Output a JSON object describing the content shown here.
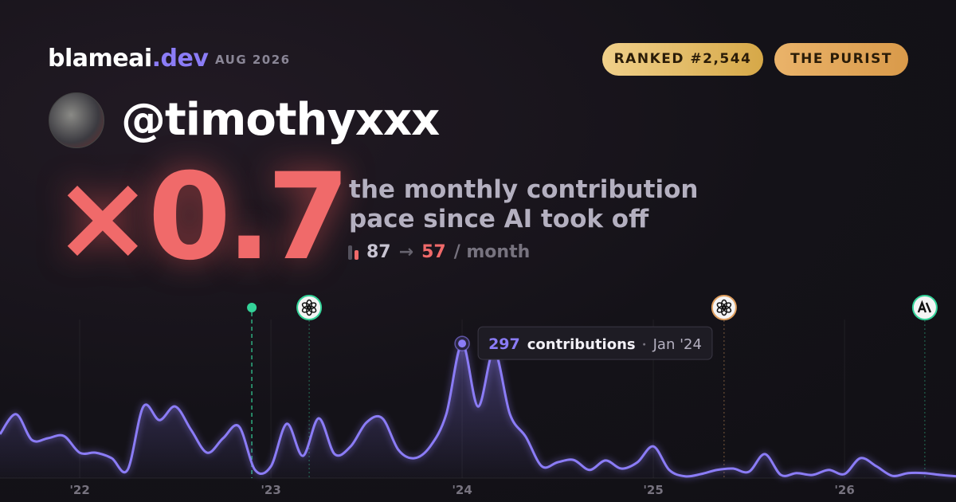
{
  "header": {
    "brand": "blameai",
    "brand_suffix": ".dev",
    "period": "AUG 2026",
    "badges": [
      "RANKED #2,544",
      "THE PURIST"
    ]
  },
  "profile": {
    "username": "@timothyxxx"
  },
  "headline": {
    "multiplier": {
      "value": 0.7,
      "label": "×0.7"
    },
    "description": [
      "the monthly contribution",
      "pace since AI took off"
    ],
    "before": 87,
    "arrow": "→",
    "after": 57,
    "unit": "/ month"
  },
  "chart_data": {
    "type": "line",
    "x": [
      2021.583,
      2021.667,
      2021.75,
      2021.833,
      2021.917,
      2022,
      2022.083,
      2022.167,
      2022.25,
      2022.333,
      2022.417,
      2022.5,
      2022.583,
      2022.667,
      2022.75,
      2022.833,
      2022.917,
      2023,
      2023.083,
      2023.167,
      2023.25,
      2023.333,
      2023.417,
      2023.5,
      2023.583,
      2023.667,
      2023.75,
      2023.833,
      2023.917,
      2024,
      2024.083,
      2024.167,
      2024.25,
      2024.333,
      2024.417,
      2024.5,
      2024.583,
      2024.667,
      2024.75,
      2024.833,
      2024.917,
      2025,
      2025.083,
      2025.167,
      2025.25,
      2025.333,
      2025.417,
      2025.5,
      2025.583,
      2025.667,
      2025.75,
      2025.833,
      2025.917,
      2026,
      2026.083,
      2026.167,
      2026.25,
      2026.333,
      2026.417,
      2026.5,
      2026.583
    ],
    "series": [
      {
        "color": "#8b7cf6",
        "values": [
          97,
          141,
          84,
          88,
          93,
          56,
          56,
          44,
          18,
          158,
          128,
          158,
          106,
          56,
          88,
          114,
          18,
          26,
          120,
          49,
          132,
          53,
          70,
          123,
          132,
          62,
          44,
          70,
          141,
          297,
          158,
          281,
          141,
          91,
          26,
          35,
          40,
          18,
          39,
          21,
          35,
          70,
          18,
          4,
          9,
          18,
          21,
          14,
          53,
          7,
          11,
          7,
          18,
          9,
          44,
          26,
          5,
          11,
          11,
          7,
          4
        ]
      }
    ],
    "xlim": [
      2021.583,
      2026.583
    ],
    "ylim": [
      0,
      350
    ],
    "xticks": [
      {
        "value": 2022,
        "label": "'22"
      },
      {
        "value": 2023,
        "label": "'23"
      },
      {
        "value": 2024,
        "label": "'24"
      },
      {
        "value": 2025,
        "label": "'25"
      },
      {
        "value": 2026,
        "label": "'26"
      }
    ],
    "grid": true,
    "annotation": {
      "x": 2024,
      "value": 297,
      "text": "contributions",
      "label": "Jan '24"
    },
    "events": [
      {
        "x": 2022.9,
        "color": "#34d399",
        "icon": "dot"
      },
      {
        "x": 2023.2,
        "color": "#34d399",
        "icon": "openai"
      },
      {
        "x": 2025.37,
        "color": "#e0a060",
        "icon": "openai"
      },
      {
        "x": 2026.42,
        "color": "#34d399",
        "icon": "anthropic"
      }
    ]
  }
}
